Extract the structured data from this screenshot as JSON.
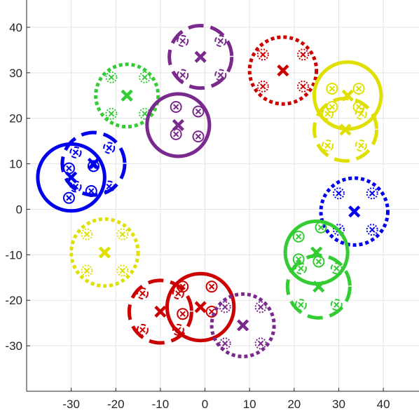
{
  "chart_data": {
    "type": "scatter",
    "title": "",
    "xlabel": "",
    "ylabel": "",
    "xlim": [
      -40,
      48
    ],
    "ylim": [
      -40,
      46
    ],
    "grid": true,
    "legend": "none",
    "x_ticks": [
      {
        "value": -30,
        "label": "-30"
      },
      {
        "value": -20,
        "label": "-20"
      },
      {
        "value": -10,
        "label": "-10"
      },
      {
        "value": 0,
        "label": "0"
      },
      {
        "value": 10,
        "label": "10"
      },
      {
        "value": 20,
        "label": "20"
      },
      {
        "value": 30,
        "label": "30"
      },
      {
        "value": 40,
        "label": "40"
      }
    ],
    "y_ticks": [
      {
        "value": -30,
        "label": "-30"
      },
      {
        "value": -20,
        "label": "-20"
      },
      {
        "value": -10,
        "label": "-10"
      },
      {
        "value": 0,
        "label": "0"
      },
      {
        "value": 10,
        "label": "10"
      },
      {
        "value": 20,
        "label": "20"
      },
      {
        "value": 30,
        "label": "30"
      },
      {
        "value": 40,
        "label": "40"
      }
    ],
    "colors": {
      "red": "#cc0000",
      "green": "#33cc33",
      "blue": "#0000ee",
      "yellow": "#e0e000",
      "purple": "#7a2a8c"
    },
    "groups": [
      {
        "color": "purple",
        "style": "dashed",
        "center": [
          -1,
          33.5
        ],
        "radius": 7,
        "points": [
          {
            "x": -5,
            "y": 37
          },
          {
            "x": 3.5,
            "y": 37
          },
          {
            "x": -5,
            "y": 29.5
          },
          {
            "x": 3.5,
            "y": 29.5
          }
        ]
      },
      {
        "color": "red",
        "style": "dotted",
        "center": [
          17.5,
          30.5
        ],
        "radius": 7.5,
        "points": [
          {
            "x": 13,
            "y": 34
          },
          {
            "x": 22,
            "y": 34
          },
          {
            "x": 13,
            "y": 27
          },
          {
            "x": 22,
            "y": 27
          }
        ]
      },
      {
        "color": "green",
        "style": "dotted",
        "center": [
          -17.5,
          25
        ],
        "radius": 7,
        "points": [
          {
            "x": -21,
            "y": 29
          },
          {
            "x": -13.5,
            "y": 29
          },
          {
            "x": -21,
            "y": 21
          },
          {
            "x": -13.5,
            "y": 21
          }
        ]
      },
      {
        "color": "yellow",
        "style": "solid",
        "center": [
          32,
          25
        ],
        "radius": 7.5,
        "points": [
          {
            "x": 28.5,
            "y": 26.5
          },
          {
            "x": 34.5,
            "y": 26.5
          },
          {
            "x": 28.5,
            "y": 22.5
          },
          {
            "x": 34.5,
            "y": 22.5
          }
        ]
      },
      {
        "color": "yellow",
        "style": "dashed",
        "center": [
          31.5,
          17.5
        ],
        "radius": 7,
        "points": [
          {
            "x": 27.5,
            "y": 21
          },
          {
            "x": 35,
            "y": 21
          },
          {
            "x": 27.5,
            "y": 14
          },
          {
            "x": 35,
            "y": 14
          }
        ]
      },
      {
        "color": "purple",
        "style": "solid",
        "center": [
          -6,
          18.5
        ],
        "radius": 7,
        "points": [
          {
            "x": -6.5,
            "y": 22.5
          },
          {
            "x": -1.5,
            "y": 21.5
          },
          {
            "x": -6.5,
            "y": 16.5
          },
          {
            "x": -1.5,
            "y": 16
          }
        ]
      },
      {
        "color": "blue",
        "style": "solid",
        "center": [
          -30,
          7
        ],
        "radius": 7.5,
        "points": [
          {
            "x": -30.5,
            "y": 9
          },
          {
            "x": -25,
            "y": 9.5
          },
          {
            "x": -30.5,
            "y": 2.5
          },
          {
            "x": -25.5,
            "y": 4
          }
        ]
      },
      {
        "color": "blue",
        "style": "dashed",
        "center": [
          -25,
          10
        ],
        "radius": 7,
        "points": [
          {
            "x": -29,
            "y": 12.5
          },
          {
            "x": -21.5,
            "y": 13.5
          },
          {
            "x": -29,
            "y": 5
          },
          {
            "x": -21.5,
            "y": 5
          }
        ]
      },
      {
        "color": "blue",
        "style": "dotted",
        "center": [
          33.5,
          -0.5
        ],
        "radius": 7.5,
        "points": [
          {
            "x": 30,
            "y": 3.5
          },
          {
            "x": 37.5,
            "y": 3.5
          },
          {
            "x": 30,
            "y": -4.5
          },
          {
            "x": 37.5,
            "y": -4.5
          }
        ]
      },
      {
        "color": "yellow",
        "style": "dotted",
        "center": [
          -22.5,
          -9.5
        ],
        "radius": 7.5,
        "points": [
          {
            "x": -26.5,
            "y": -5.5
          },
          {
            "x": -18.5,
            "y": -5.5
          },
          {
            "x": -26.5,
            "y": -13.5
          },
          {
            "x": -18.5,
            "y": -13.5
          }
        ]
      },
      {
        "color": "green",
        "style": "solid",
        "center": [
          25,
          -9.5
        ],
        "radius": 7,
        "points": [
          {
            "x": 21,
            "y": -6
          },
          {
            "x": 26,
            "y": -4
          },
          {
            "x": 21,
            "y": -11
          },
          {
            "x": 25.5,
            "y": -11.5
          }
        ]
      },
      {
        "color": "green",
        "style": "dashed",
        "center": [
          25.5,
          -17
        ],
        "radius": 7,
        "points": [
          {
            "x": 21.5,
            "y": -13
          },
          {
            "x": 29.5,
            "y": -13
          },
          {
            "x": 21.5,
            "y": -21
          },
          {
            "x": 29.5,
            "y": -21
          }
        ]
      },
      {
        "color": "red",
        "style": "solid",
        "center": [
          -1,
          -21.5
        ],
        "radius": 7.5,
        "points": [
          {
            "x": -5,
            "y": -17
          },
          {
            "x": 1.5,
            "y": -17
          },
          {
            "x": -5,
            "y": -23
          },
          {
            "x": 1.5,
            "y": -22.5
          }
        ]
      },
      {
        "color": "red",
        "style": "dashed",
        "center": [
          -10,
          -22.5
        ],
        "radius": 7,
        "points": [
          {
            "x": -14,
            "y": -18.5
          },
          {
            "x": -6,
            "y": -18.5
          },
          {
            "x": -14,
            "y": -26.5
          },
          {
            "x": -6,
            "y": -26.5
          }
        ]
      },
      {
        "color": "purple",
        "style": "dotted",
        "center": [
          8.5,
          -25.5
        ],
        "radius": 7,
        "points": [
          {
            "x": 4.5,
            "y": -21.5
          },
          {
            "x": 12.5,
            "y": -21.5
          },
          {
            "x": 4.5,
            "y": -29.5
          },
          {
            "x": 12.5,
            "y": -29.5
          }
        ]
      }
    ]
  }
}
